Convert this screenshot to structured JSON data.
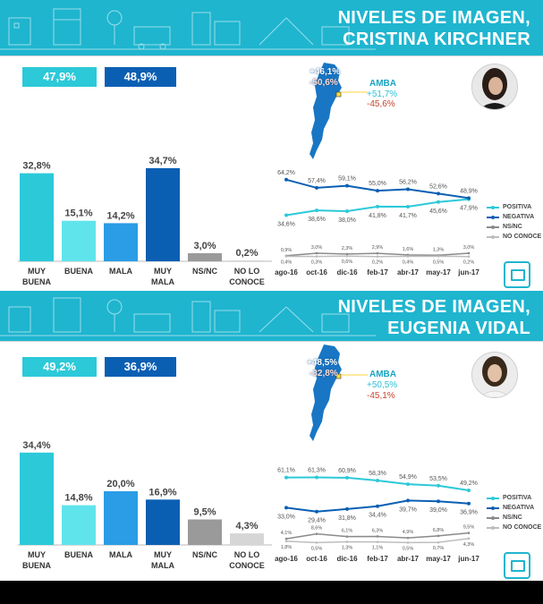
{
  "colors": {
    "banner": "#1fb5cf",
    "muy_buena": "#2cc9d9",
    "buena": "#60e4ec",
    "mala": "#2a9de6",
    "muy_mala": "#0b5fb3",
    "ns_nc": "#9a9a9a",
    "no_conoce": "#d6d6d6",
    "positiva": "#2cc9d9",
    "negativa": "#0b5fb3",
    "gray_line": "#8a8a8a",
    "map": "#1976c4"
  },
  "panels": [
    {
      "title_line1": "NIVELES DE IMAGEN,",
      "title_line2": "CRISTINA KIRCHNER",
      "summary_positive": "47,9%",
      "summary_negative": "48,9%",
      "map_positive": "+46,1%",
      "map_negative": "-50,6%",
      "amba_title": "AMBA",
      "amba_positive": "+51,7%",
      "amba_negative": "-45,6%",
      "chart_data": {
        "type": "bar",
        "categories": [
          "MUY BUENA",
          "BUENA",
          "MALA",
          "MUY MALA",
          "NS/NC",
          "NO LO CONOCE"
        ],
        "values": [
          32.8,
          15.1,
          14.2,
          34.7,
          3.0,
          0.2
        ],
        "value_labels": [
          "32,8%",
          "15,1%",
          "14,2%",
          "34,7%",
          "3,0%",
          "0,2%"
        ]
      },
      "line_chart": {
        "type": "line",
        "x": [
          "ago-16",
          "oct-16",
          "dic-16",
          "feb-17",
          "abr-17",
          "may-17",
          "jun-17"
        ],
        "legend": [
          "POSITIVA",
          "NEGATIVA",
          "NS/NC",
          "NO CONOCE"
        ],
        "series": [
          {
            "name": "POSITIVA",
            "values": [
              34.6,
              38.6,
              38.0,
              41.8,
              41.7,
              45.6,
              47.9
            ],
            "labels": [
              "34,6%",
              "38,6%",
              "38,0%",
              "41,8%",
              "41,7%",
              "45,6%",
              "47,9%"
            ]
          },
          {
            "name": "NEGATIVA",
            "values": [
              64.2,
              57.4,
              59.1,
              55.0,
              56.2,
              52.6,
              48.9
            ],
            "labels": [
              "64,2%",
              "57,4%",
              "59,1%",
              "55,0%",
              "56,2%",
              "52,6%",
              "48,9%"
            ]
          },
          {
            "name": "NS/NC",
            "values": [
              0.9,
              3.0,
              2.3,
              2.9,
              1.6,
              1.3,
              3.0
            ],
            "labels": [
              "0,9%",
              "3,0%",
              "2,3%",
              "2,9%",
              "1,6%",
              "1,3%",
              "3,0%"
            ]
          },
          {
            "name": "NO CONOCE",
            "values": [
              0.4,
              0.3,
              0.6,
              0.2,
              0.4,
              0.5,
              0.2
            ],
            "labels": [
              "0,4%",
              "0,3%",
              "0,6%",
              "0,2%",
              "0,4%",
              "0,5%",
              "0,2%"
            ]
          }
        ]
      }
    },
    {
      "title_line1": "NIVELES DE IMAGEN,",
      "title_line2": "EUGENIA VIDAL",
      "summary_positive": "49,2%",
      "summary_negative": "36,9%",
      "map_positive": "+48,5%",
      "map_negative": "-32,8%",
      "amba_title": "AMBA",
      "amba_positive": "+50,5%",
      "amba_negative": "-45,1%",
      "chart_data": {
        "type": "bar",
        "categories": [
          "MUY BUENA",
          "BUENA",
          "MALA",
          "MUY MALA",
          "NS/NC",
          "NO LO CONOCE"
        ],
        "values": [
          34.4,
          14.8,
          20.0,
          16.9,
          9.5,
          4.3
        ],
        "value_labels": [
          "34,4%",
          "14,8%",
          "20,0%",
          "16,9%",
          "9,5%",
          "4,3%"
        ]
      },
      "line_chart": {
        "type": "line",
        "x": [
          "ago-16",
          "oct-16",
          "dic-16",
          "feb-17",
          "abr-17",
          "may-17",
          "jun-17"
        ],
        "legend": [
          "POSITIVA",
          "NEGATIVA",
          "NS/NC",
          "NO CONOCE"
        ],
        "series": [
          {
            "name": "POSITIVA",
            "values": [
              61.1,
              61.3,
              60.9,
              58.3,
              54.9,
              53.5,
              49.2
            ],
            "labels": [
              "61,1%",
              "61,3%",
              "60,9%",
              "58,3%",
              "54,9%",
              "53,5%",
              "49,2%"
            ]
          },
          {
            "name": "NEGATIVA",
            "values": [
              33.0,
              29.4,
              31.8,
              34.4,
              39.7,
              39.0,
              36.9
            ],
            "labels": [
              "33,0%",
              "29,4%",
              "31,8%",
              "34,4%",
              "39,7%",
              "39,0%",
              "36,9%"
            ]
          },
          {
            "name": "NS/NC",
            "values": [
              4.1,
              8.6,
              6.1,
              6.3,
              4.9,
              6.8,
              9.5
            ],
            "labels": [
              "4,1%",
              "8,6%",
              "6,1%",
              "6,3%",
              "4,9%",
              "6,8%",
              "9,5%"
            ]
          },
          {
            "name": "NO CONOCE",
            "values": [
              1.8,
              0.5,
              1.3,
              1.1,
              0.5,
              0.7,
              4.3
            ],
            "labels": [
              "1,8%",
              "0,5%",
              "1,3%",
              "1,1%",
              "0,5%",
              "0,7%",
              "4,3%"
            ]
          }
        ]
      }
    }
  ]
}
